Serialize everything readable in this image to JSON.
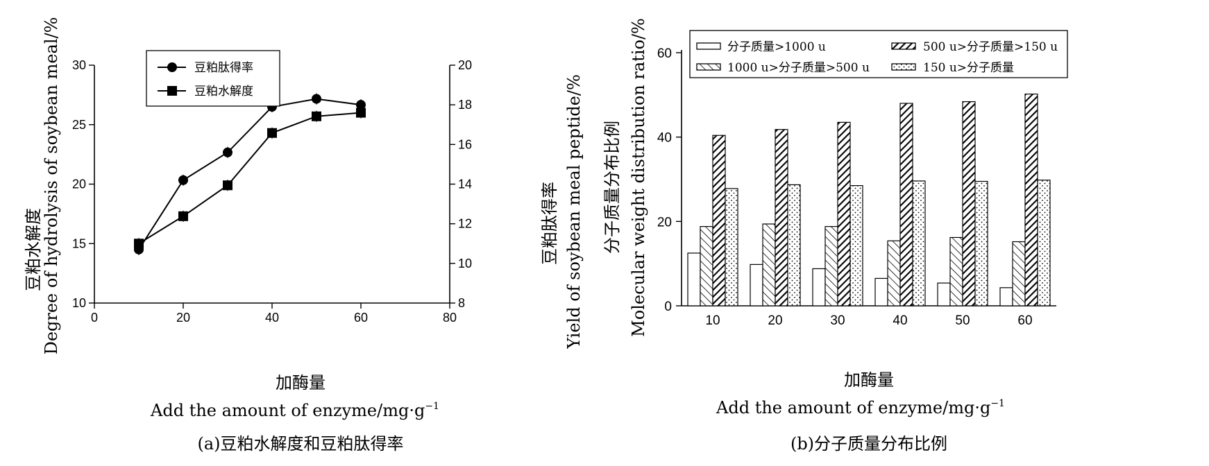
{
  "chart_data": [
    {
      "type": "line",
      "caption": "(a)豆粕水解度和豆粕肽得率",
      "xlabel_cn": "加酶量",
      "xlabel_en": "Add the amount of enzyme/mg·g",
      "xlabel_sup": "−1",
      "ylabel_left_cn": "豆粕水解度",
      "ylabel_left_en": "Degree of hydrolysis of soybean meal/%",
      "ylabel_right_cn": "豆粕肽得率",
      "ylabel_right_en": "Yield of soybean meal peptide/%",
      "xlim": [
        0,
        80
      ],
      "ylim_left": [
        10,
        30
      ],
      "ylim_right": [
        8,
        20
      ],
      "x_ticks": [
        0,
        20,
        40,
        60,
        80
      ],
      "y_left_ticks": [
        10,
        15,
        20,
        25,
        30
      ],
      "y_right_ticks": [
        8,
        10,
        12,
        14,
        16,
        18,
        20
      ],
      "legend_position": "top-left",
      "x": [
        10,
        20,
        30,
        40,
        50,
        60
      ],
      "series": [
        {
          "name": "豆粕肽得率",
          "marker": "circle",
          "axis": "right",
          "values": [
            10.7,
            14.2,
            15.6,
            17.9,
            18.3,
            18.0
          ]
        },
        {
          "name": "豆粕水解度",
          "marker": "square",
          "axis": "left",
          "values": [
            15.0,
            17.3,
            19.9,
            24.3,
            25.7,
            26.0
          ]
        }
      ]
    },
    {
      "type": "bar",
      "caption": "(b)分子质量分布比例",
      "xlabel_cn": "加酶量",
      "xlabel_en": "Add the amount of enzyme/mg·g",
      "xlabel_sup": "−1",
      "ylabel_cn": "分子质量分布比例",
      "ylabel_en": "Molecular weight distribution ratio/%",
      "ylim": [
        0,
        60
      ],
      "y_ticks": [
        0,
        20,
        40,
        60
      ],
      "legend_position": "top",
      "categories": [
        "10",
        "20",
        "30",
        "40",
        "50",
        "60"
      ],
      "series": [
        {
          "name": "分子质量>1000 u",
          "pattern": "plain",
          "values": [
            12.5,
            9.8,
            8.8,
            6.5,
            5.4,
            4.3
          ]
        },
        {
          "name": "1000 u>分子质量>500 u",
          "pattern": "hatch",
          "values": [
            18.8,
            19.4,
            18.8,
            15.4,
            16.2,
            15.2
          ]
        },
        {
          "name": "500 u>分子质量>150 u",
          "pattern": "dense-hatch",
          "values": [
            40.4,
            41.8,
            43.5,
            48.0,
            48.4,
            50.2
          ]
        },
        {
          "name": "150 u>分子质量",
          "pattern": "dots",
          "values": [
            27.8,
            28.7,
            28.5,
            29.6,
            29.5,
            29.8
          ]
        }
      ]
    }
  ]
}
